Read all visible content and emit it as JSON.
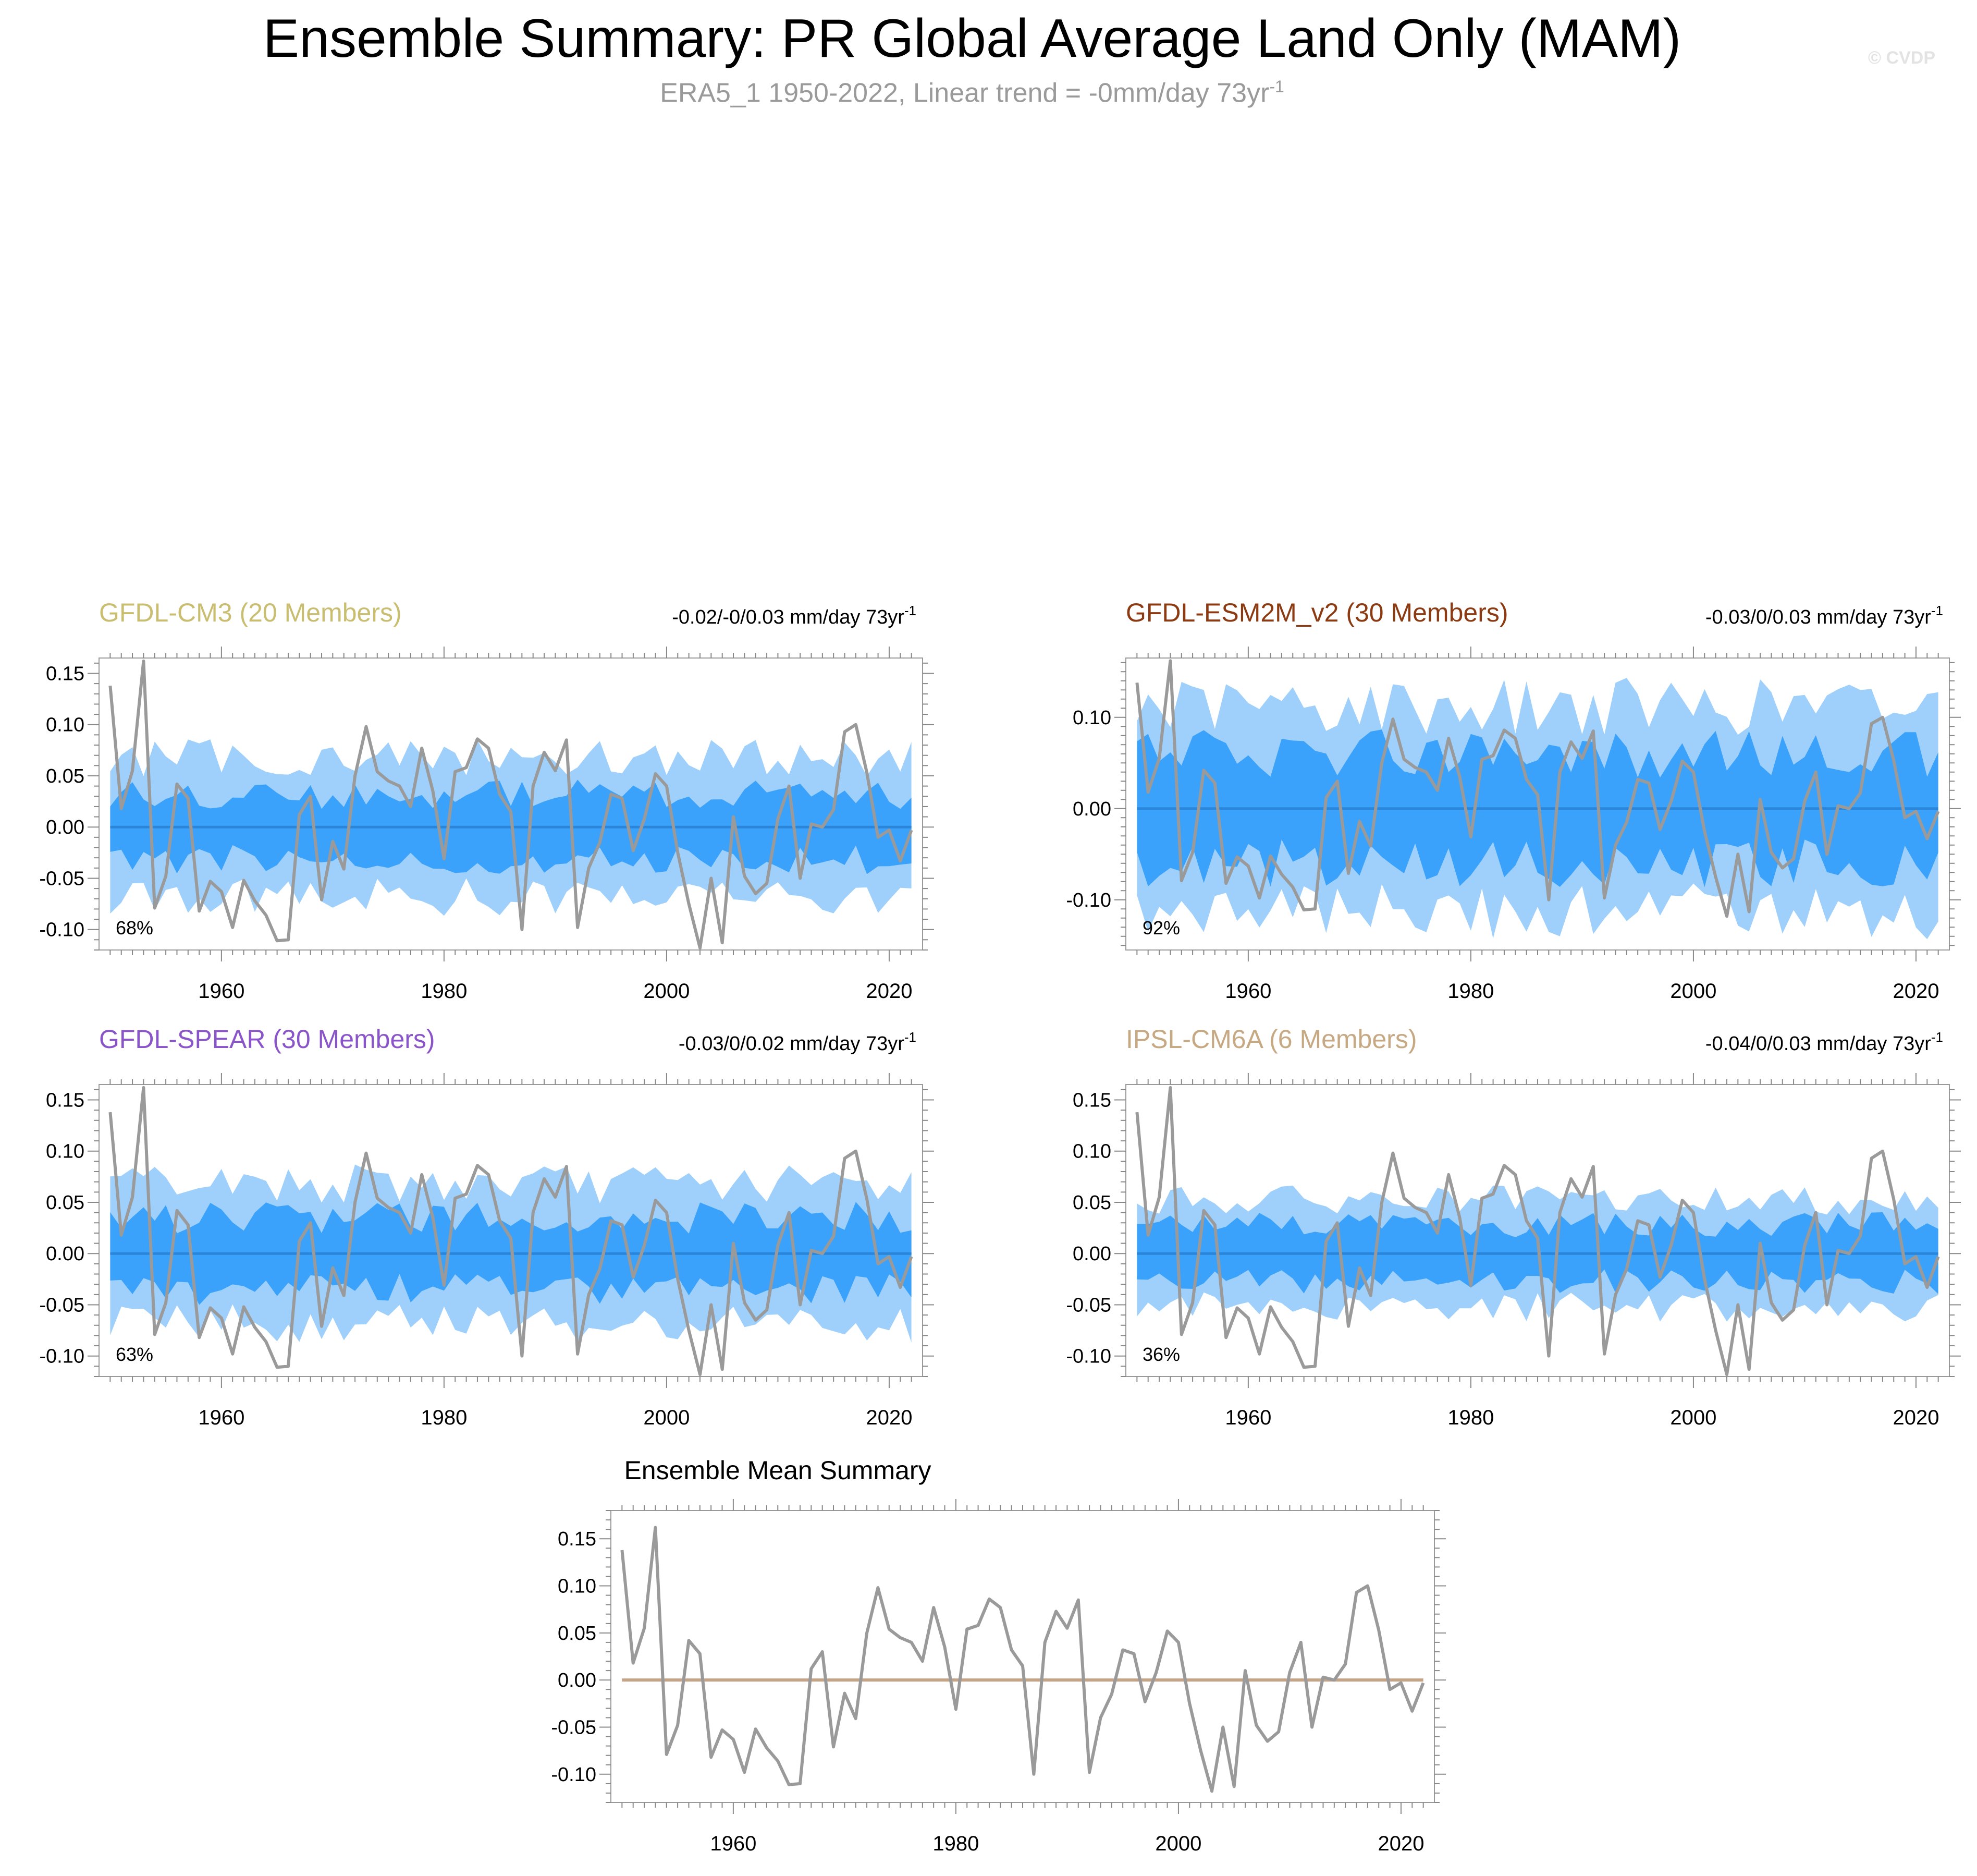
{
  "title": "Ensemble Summary: PR Global Average Land Only (MAM)",
  "subtitle": "ERA5_1 1950-2022, Linear trend = -0mm/day 73yr",
  "subtitle_sup": "-1",
  "copyright": "© CVDP",
  "colors": {
    "outer_band": "#9fd0fb",
    "inner_band": "#3aa2fb",
    "ensemble_mean_line": "#2b86d9",
    "observation_line": "#9a9a9a",
    "summary_zero_line": "#c4a387",
    "frame": "#9a9a9a"
  },
  "chart_data": [
    {
      "type": "area",
      "title": "GFDL-CM3 (20 Members)",
      "title_color": "#c9bd70",
      "trend_label": "-0.02/-0/0.03 mm/day 73yr",
      "trend_sup": "-1",
      "percent_label": "68%",
      "xlim": [
        1949,
        2023
      ],
      "ylim": [
        -0.12,
        0.165
      ],
      "xticks": [
        "1960",
        "1980",
        "2000",
        "2020"
      ],
      "xtick_values": [
        1960,
        1980,
        2000,
        2020
      ],
      "yticks": [
        "0.15",
        "0.10",
        "0.05",
        "0.00",
        "-0.05",
        "-0.10"
      ],
      "ytick_values": [
        0.15,
        0.1,
        0.05,
        0.0,
        -0.05,
        -0.1
      ],
      "outer_spread": 0.068,
      "inner_spread": 0.032,
      "ensemble_mean": 0.0
    },
    {
      "type": "area",
      "title": "GFDL-ESM2M_v2 (30 Members)",
      "title_color": "#8b3a12",
      "trend_label": "-0.03/0/0.03 mm/day 73yr",
      "trend_sup": "-1",
      "percent_label": "92%",
      "xlim": [
        1949,
        2023
      ],
      "ylim": [
        -0.155,
        0.165
      ],
      "xticks": [
        "1960",
        "1980",
        "2000",
        "2020"
      ],
      "xtick_values": [
        1960,
        1980,
        2000,
        2020
      ],
      "yticks": [
        "0.10",
        "0.00",
        "-0.10"
      ],
      "ytick_values": [
        0.1,
        0.0,
        -0.1
      ],
      "outer_spread": 0.112,
      "inner_spread": 0.06,
      "ensemble_mean": 0.0
    },
    {
      "type": "area",
      "title": "GFDL-SPEAR (30 Members)",
      "title_color": "#8a55c9",
      "trend_label": "-0.03/0/0.02 mm/day 73yr",
      "trend_sup": "-1",
      "percent_label": "63%",
      "xlim": [
        1949,
        2023
      ],
      "ylim": [
        -0.12,
        0.165
      ],
      "xticks": [
        "1960",
        "1980",
        "2000",
        "2020"
      ],
      "xtick_values": [
        1960,
        1980,
        2000,
        2020
      ],
      "yticks": [
        "0.15",
        "0.10",
        "0.05",
        "0.00",
        "-0.05",
        "-0.10"
      ],
      "ytick_values": [
        0.15,
        0.1,
        0.05,
        0.0,
        -0.05,
        -0.1
      ],
      "outer_spread": 0.068,
      "inner_spread": 0.035,
      "ensemble_mean": 0.0
    },
    {
      "type": "area",
      "title": "IPSL-CM6A (6 Members)",
      "title_color": "#c6a882",
      "trend_label": "-0.04/0/0.03 mm/day 73yr",
      "trend_sup": "-1",
      "percent_label": "36%",
      "xlim": [
        1949,
        2023
      ],
      "ylim": [
        -0.12,
        0.165
      ],
      "xticks": [
        "1960",
        "1980",
        "2000",
        "2020"
      ],
      "xtick_values": [
        1960,
        1980,
        2000,
        2020
      ],
      "yticks": [
        "0.15",
        "0.10",
        "0.05",
        "0.00",
        "-0.05",
        "-0.10"
      ],
      "ytick_values": [
        0.15,
        0.1,
        0.05,
        0.0,
        -0.05,
        -0.1
      ],
      "outer_spread": 0.052,
      "inner_spread": 0.028,
      "ensemble_mean": 0.0
    },
    {
      "type": "line",
      "title": "Ensemble Mean Summary",
      "xlim": [
        1949,
        2023
      ],
      "ylim": [
        -0.13,
        0.18
      ],
      "xticks": [
        "1960",
        "1980",
        "2000",
        "2020"
      ],
      "xtick_values": [
        1960,
        1980,
        2000,
        2020
      ],
      "yticks": [
        "0.15",
        "0.10",
        "0.05",
        "0.00",
        "-0.05",
        "-0.10"
      ],
      "ytick_values": [
        0.15,
        0.1,
        0.05,
        0.0,
        -0.05,
        -0.1
      ],
      "ensemble_mean": 0.0
    }
  ],
  "observation_series": {
    "years": [
      1950,
      1951,
      1952,
      1953,
      1954,
      1955,
      1956,
      1957,
      1958,
      1959,
      1960,
      1961,
      1962,
      1963,
      1964,
      1965,
      1966,
      1967,
      1968,
      1969,
      1970,
      1971,
      1972,
      1973,
      1974,
      1975,
      1976,
      1977,
      1978,
      1979,
      1980,
      1981,
      1982,
      1983,
      1984,
      1985,
      1986,
      1987,
      1988,
      1989,
      1990,
      1991,
      1992,
      1993,
      1994,
      1995,
      1996,
      1997,
      1998,
      1999,
      2000,
      2001,
      2002,
      2003,
      2004,
      2005,
      2006,
      2007,
      2008,
      2009,
      2010,
      2011,
      2012,
      2013,
      2014,
      2015,
      2016,
      2017,
      2018,
      2019,
      2020,
      2021,
      2022
    ],
    "values": [
      0.138,
      0.018,
      0.055,
      0.162,
      -0.079,
      -0.048,
      0.042,
      0.028,
      -0.082,
      -0.053,
      -0.063,
      -0.098,
      -0.052,
      -0.072,
      -0.086,
      -0.111,
      -0.11,
      0.012,
      0.03,
      -0.071,
      -0.014,
      -0.041,
      0.05,
      0.098,
      0.054,
      0.045,
      0.04,
      0.02,
      0.077,
      0.035,
      -0.031,
      0.054,
      0.058,
      0.086,
      0.077,
      0.032,
      0.015,
      -0.1,
      0.04,
      0.073,
      0.055,
      0.085,
      -0.098,
      -0.04,
      -0.015,
      0.032,
      0.028,
      -0.023,
      0.008,
      0.052,
      0.04,
      -0.025,
      -0.075,
      -0.118,
      -0.05,
      -0.113,
      0.01,
      -0.048,
      -0.065,
      -0.055,
      0.008,
      0.04,
      -0.05,
      0.003,
      0.0,
      0.017,
      0.093,
      0.1,
      0.053,
      -0.01,
      -0.003,
      -0.033,
      -0.003
    ]
  }
}
